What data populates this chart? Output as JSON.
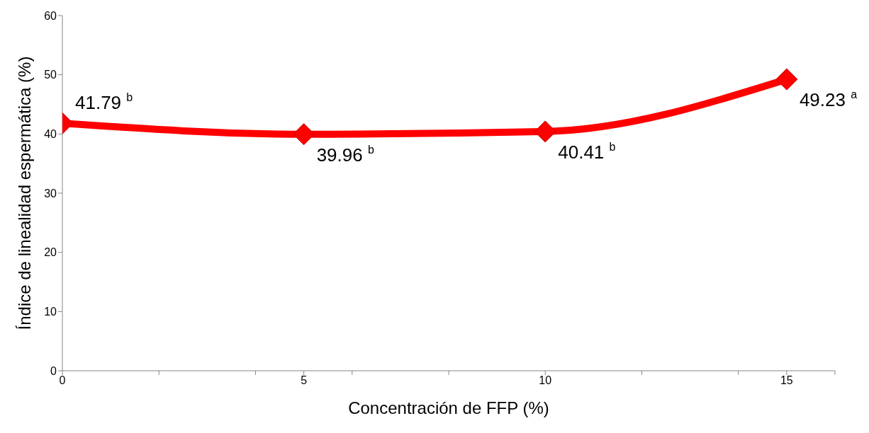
{
  "chart_data": {
    "type": "line",
    "xlabel": "Concentración de FFP (%)",
    "ylabel": "Índice de linealidad espermática (%)",
    "x": [
      0,
      5,
      10,
      15
    ],
    "series": [
      {
        "color": "#ff0000",
        "values": [
          41.79,
          39.96,
          40.41,
          49.23
        ],
        "value_labels": [
          "41.79 $^{b}$",
          "39.96 $^{b}$",
          "40.41 $^{b}$",
          "49.23 $^{a}$"
        ]
      }
    ],
    "xlim": [
      0,
      16
    ],
    "xticks": [
      0,
      {
        "value": 2,
        "label": null
      },
      {
        "value": 4,
        "label": null
      },
      5,
      {
        "value": 6,
        "label": null
      },
      {
        "value": 8,
        "label": null
      },
      10,
      {
        "value": 12,
        "label": null
      },
      {
        "value": 14,
        "label": null
      },
      15,
      {
        "value": 16,
        "label": null
      }
    ],
    "ylim": [
      0,
      60
    ],
    "yticks": [
      0,
      10,
      20,
      30,
      40,
      50,
      60
    ],
    "grid": false,
    "legend": false,
    "marker": "diamond",
    "line_style": "solid"
  }
}
